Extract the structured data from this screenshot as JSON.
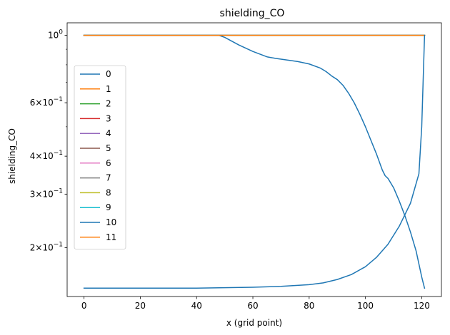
{
  "chart_data": {
    "type": "line",
    "title": "shielding_CO",
    "xlabel": "x (grid point)",
    "ylabel": "shielding_CO",
    "yscale": "log",
    "xlim": [
      -6,
      127
    ],
    "ylim": [
      0.138,
      1.1
    ],
    "xticks": [
      0,
      20,
      40,
      60,
      80,
      100,
      120
    ],
    "xtick_labels": [
      "0",
      "20",
      "40",
      "60",
      "80",
      "100",
      "120"
    ],
    "yticks": [
      1.0,
      0.6,
      0.4,
      0.3,
      0.2
    ],
    "ytick_labels": [
      "10^0",
      "6×10^-1",
      "4×10^-1",
      "3×10^-1",
      "2×10^-1"
    ],
    "minor_yticks": [
      0.5,
      0.7,
      0.8,
      0.9
    ],
    "grid": false,
    "legend_position": "center-left",
    "series": [
      {
        "name": "0",
        "color": "#1f77b4",
        "x": [
          0,
          121
        ],
        "y": [
          1.0,
          1.0
        ]
      },
      {
        "name": "1",
        "color": "#ff7f0e",
        "x": [
          0,
          121
        ],
        "y": [
          1.0,
          1.0
        ]
      },
      {
        "name": "2",
        "color": "#2ca02c",
        "x": [
          0,
          121
        ],
        "y": [
          1.0,
          1.0
        ]
      },
      {
        "name": "3",
        "color": "#d62728",
        "x": [
          0,
          121
        ],
        "y": [
          1.0,
          1.0
        ]
      },
      {
        "name": "4",
        "color": "#9467bd",
        "x": [
          0,
          121
        ],
        "y": [
          1.0,
          1.0
        ]
      },
      {
        "name": "5",
        "color": "#8c564b",
        "x": [
          0,
          121
        ],
        "y": [
          1.0,
          1.0
        ]
      },
      {
        "name": "6",
        "color": "#e377c2",
        "x": [
          0,
          121
        ],
        "y": [
          1.0,
          1.0
        ]
      },
      {
        "name": "7",
        "color": "#7f7f7f",
        "x": [
          0,
          121
        ],
        "y": [
          1.0,
          1.0
        ]
      },
      {
        "name": "8",
        "color": "#bcbd22",
        "x": [
          0,
          121
        ],
        "y": [
          1.0,
          1.0
        ]
      },
      {
        "name": "9",
        "color": "#17becf",
        "x": [
          0,
          121
        ],
        "y": [
          1.0,
          1.0
        ]
      },
      {
        "name": "10",
        "color": "#1f77b4",
        "x": [
          0,
          20,
          40,
          48,
          50,
          55,
          60,
          65,
          68,
          72,
          76,
          80,
          84,
          86,
          88,
          90,
          92,
          94,
          96,
          98,
          100,
          102,
          104,
          106,
          107,
          108,
          110,
          112,
          114,
          116,
          118,
          120,
          121
        ],
        "y": [
          1.0,
          1.0,
          1.0,
          1.0,
          0.985,
          0.93,
          0.885,
          0.85,
          0.84,
          0.83,
          0.82,
          0.805,
          0.78,
          0.76,
          0.735,
          0.715,
          0.685,
          0.645,
          0.6,
          0.55,
          0.5,
          0.45,
          0.405,
          0.36,
          0.345,
          0.338,
          0.315,
          0.285,
          0.255,
          0.225,
          0.195,
          0.16,
          0.147
        ]
      },
      {
        "name": "11",
        "color": "#ff7f0e",
        "x": [
          0,
          121
        ],
        "y": [
          1.0,
          1.0
        ]
      },
      {
        "name": "",
        "color": "#1f77b4",
        "legend": false,
        "x": [
          0,
          20,
          40,
          60,
          70,
          80,
          85,
          90,
          95,
          100,
          104,
          108,
          112,
          116,
          119,
          120,
          121
        ],
        "y": [
          0.147,
          0.147,
          0.147,
          0.148,
          0.149,
          0.151,
          0.153,
          0.157,
          0.163,
          0.173,
          0.186,
          0.205,
          0.235,
          0.28,
          0.35,
          0.5,
          1.0
        ]
      }
    ]
  }
}
